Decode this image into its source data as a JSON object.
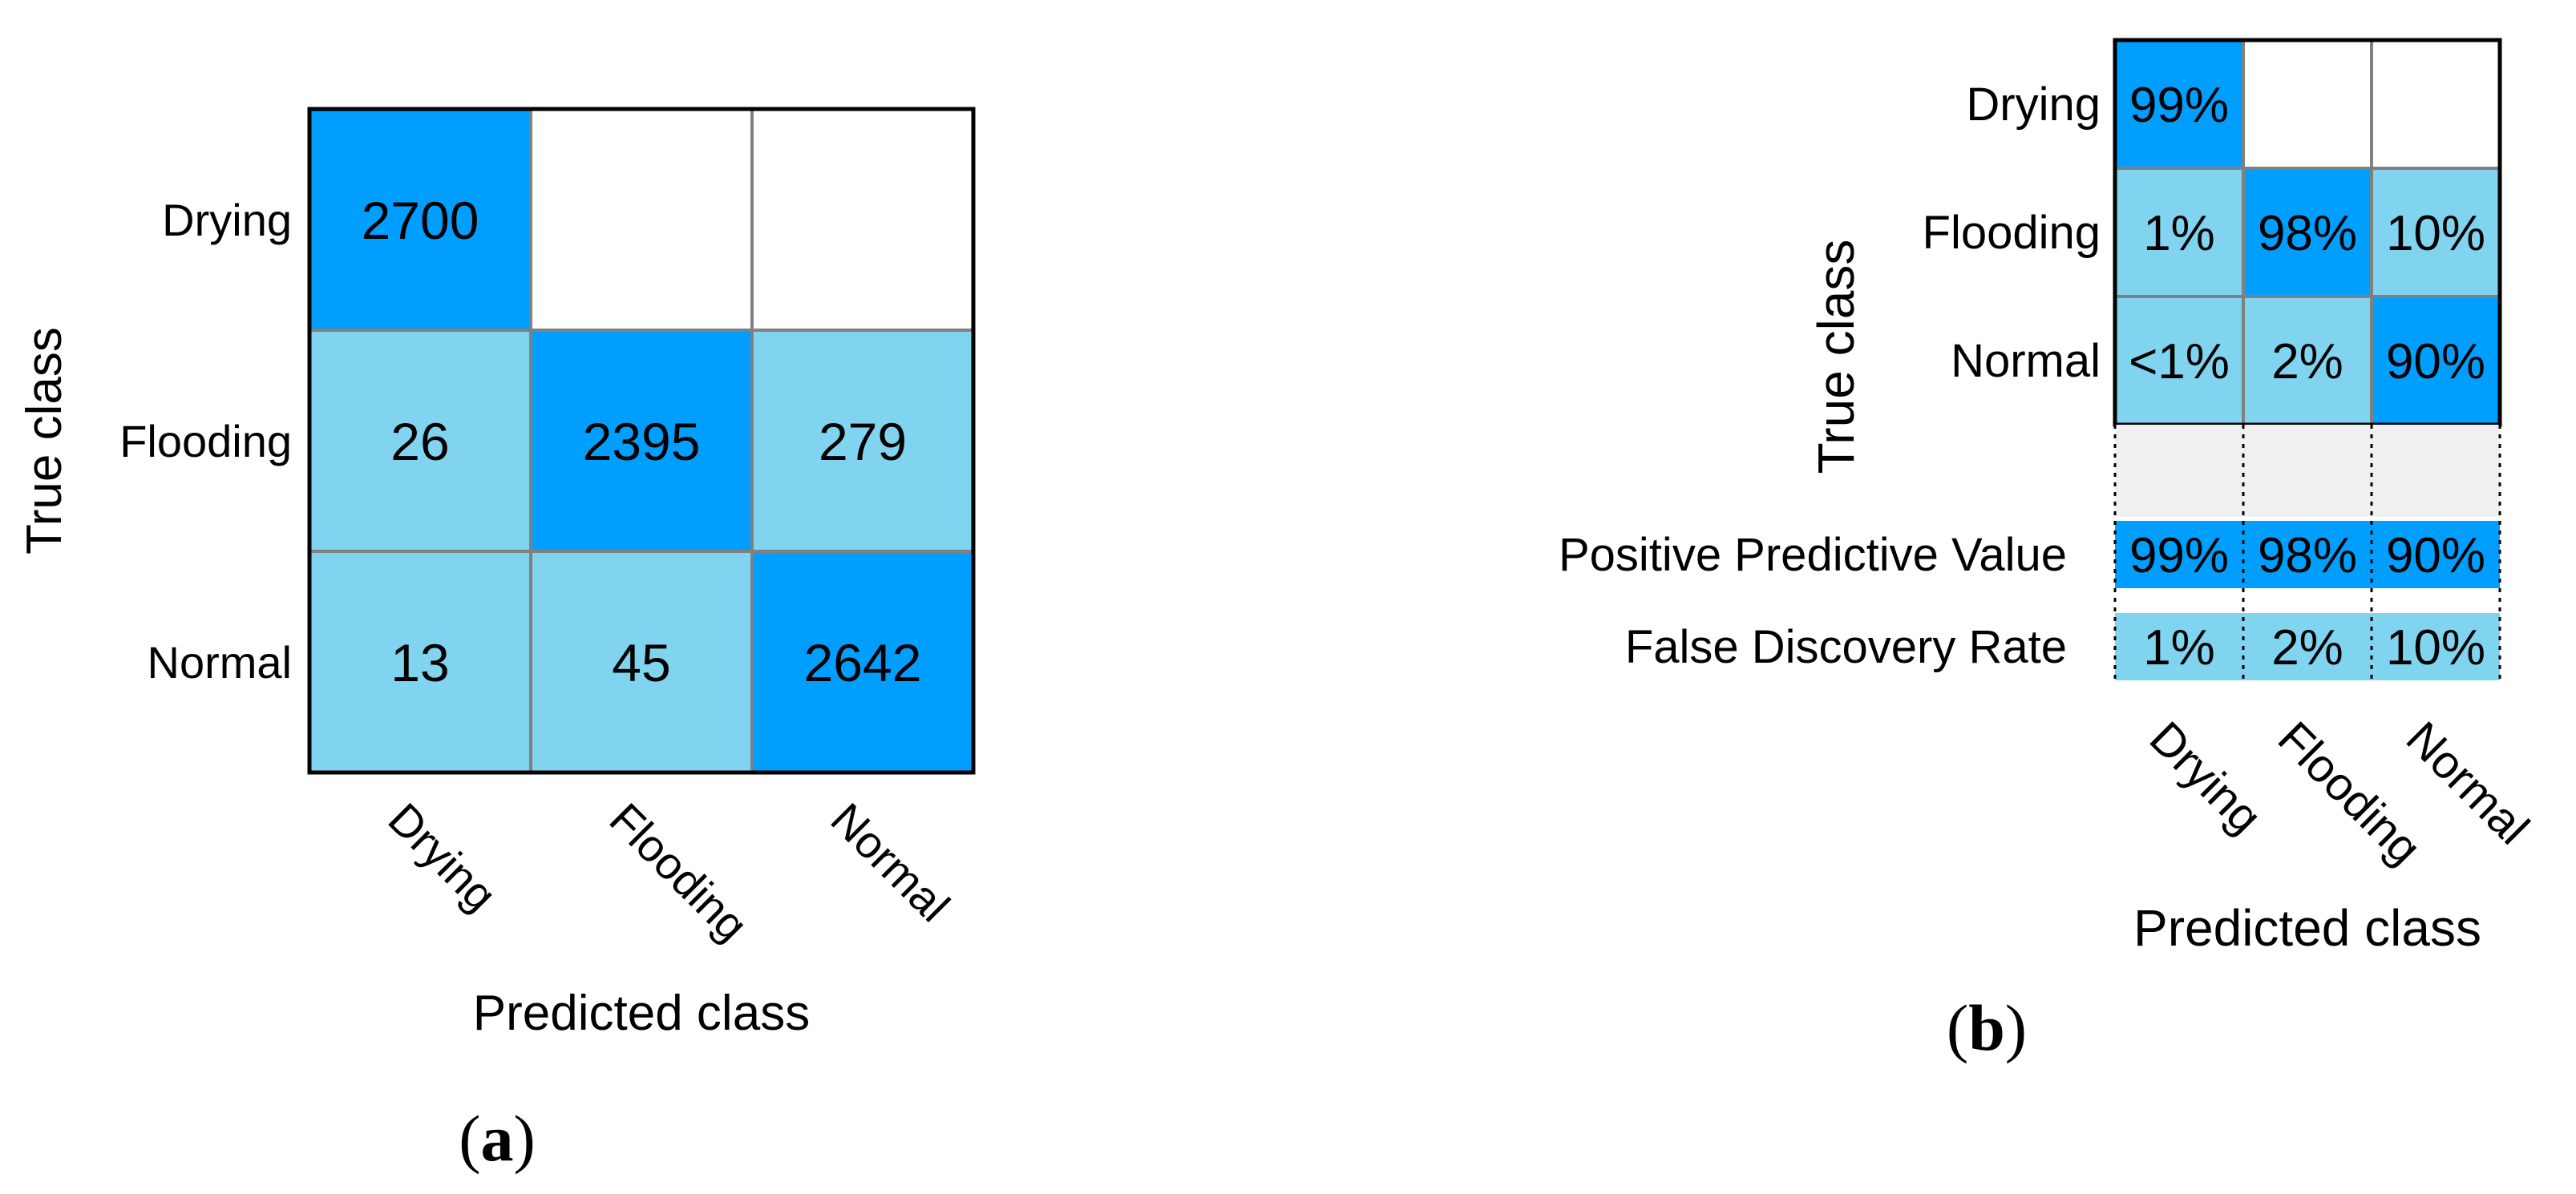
{
  "chart_data": [
    {
      "type": "heatmap",
      "panel_label_open": "(",
      "panel_label_letter": "a",
      "panel_label_close": ")",
      "xlabel": "Predicted class",
      "ylabel": "True class",
      "rows": [
        "Drying",
        "Flooding",
        "Normal"
      ],
      "cols": [
        "Drying",
        "Flooding",
        "Normal"
      ],
      "cells": [
        [
          "2700",
          "",
          ""
        ],
        [
          "26",
          "2395",
          "279"
        ],
        [
          "13",
          "45",
          "2642"
        ]
      ],
      "values": [
        [
          2700,
          0,
          0
        ],
        [
          26,
          2395,
          279
        ],
        [
          13,
          45,
          2642
        ]
      ]
    },
    {
      "type": "heatmap",
      "panel_label_open": "(",
      "panel_label_letter": "b",
      "panel_label_close": ")",
      "xlabel": "Predicted class",
      "ylabel": "True class",
      "rows": [
        "Drying",
        "Flooding",
        "Normal"
      ],
      "cols": [
        "Drying",
        "Flooding",
        "Normal"
      ],
      "cells": [
        [
          "99%",
          "",
          ""
        ],
        [
          "1%",
          "98%",
          "10%"
        ],
        [
          "<1%",
          "2%",
          "90%"
        ]
      ],
      "values": [
        [
          99,
          0,
          0
        ],
        [
          1,
          98,
          10
        ],
        [
          0.5,
          2,
          90
        ]
      ],
      "summary_rows": [
        {
          "label": "Positive Predictive Value",
          "cells": [
            "99%",
            "98%",
            "90%"
          ],
          "values": [
            99,
            98,
            90
          ]
        },
        {
          "label": "False Discovery Rate",
          "cells": [
            "1%",
            "2%",
            "10%"
          ],
          "values": [
            1,
            2,
            10
          ]
        }
      ]
    }
  ],
  "colors": {
    "diagonal": "#009EFF",
    "off_diagonal": "#80D4EF",
    "empty": "#FFFFFF",
    "spacer": "#F0F0F0",
    "cell_border": "#808080",
    "frame": "#000000"
  }
}
